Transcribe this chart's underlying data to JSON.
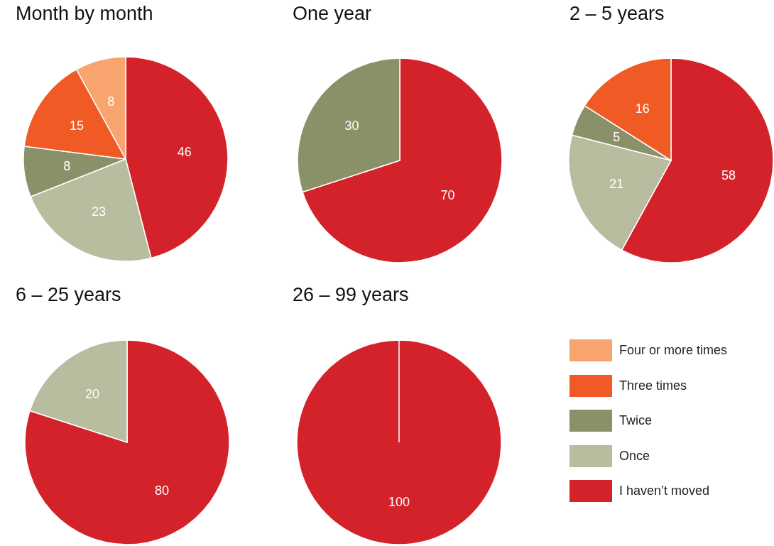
{
  "chart_data": [
    {
      "type": "pie",
      "title": "Month by month",
      "categories": [
        null,
        null,
        null,
        null,
        null
      ],
      "values": [
        46,
        23,
        8,
        15,
        8
      ],
      "colors": [
        "#d3222a",
        "#b8bd9f",
        "#8a9168",
        "#f05a24",
        "#f8a46e"
      ],
      "data_labels": true
    },
    {
      "type": "pie",
      "title": "One year",
      "categories": [
        null,
        null,
        null,
        null,
        null
      ],
      "values": [
        70,
        0,
        30,
        0,
        0
      ],
      "colors": [
        "#d3222a",
        "#b8bd9f",
        "#8a9168",
        "#f05a24",
        "#f8a46e"
      ],
      "data_labels": true
    },
    {
      "type": "pie",
      "title": "2 – 5 years",
      "categories": [
        null,
        null,
        null,
        null,
        null
      ],
      "values": [
        58,
        21,
        5,
        16,
        0
      ],
      "colors": [
        "#d3222a",
        "#b8bd9f",
        "#8a9168",
        "#f05a24",
        "#f8a46e"
      ],
      "data_labels": true
    },
    {
      "type": "pie",
      "title": "6 – 25 years",
      "categories": [
        null,
        null,
        null,
        null,
        null
      ],
      "values": [
        80,
        20,
        0,
        0,
        0
      ],
      "colors": [
        "#d3222a",
        "#b8bd9f",
        "#8a9168",
        "#f05a24",
        "#f8a46e"
      ],
      "data_labels": true
    },
    {
      "type": "pie",
      "title": "26 – 99 years",
      "categories": [
        "I haven’t moved",
        "Once",
        "Twice",
        "Three times",
        "Four or more times"
      ],
      "values": [
        100,
        0,
        0,
        0,
        0
      ],
      "colors": [
        "#d3222a",
        "#b8bd9f",
        "#8a9168",
        "#f05a24",
        "#f8a46e"
      ],
      "data_labels": true,
      "legend": "right"
    }
  ]
}
